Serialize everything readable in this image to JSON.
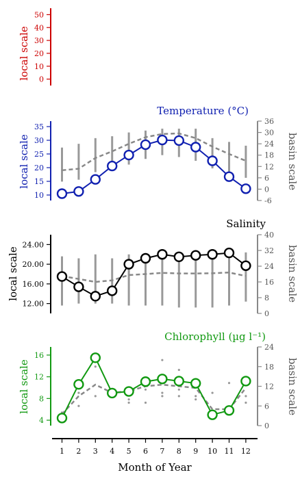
{
  "colors": {
    "top": "#cc0000",
    "temperature": "#1020b0",
    "salinity": "#000000",
    "chlorophyll": "#119911",
    "basin": "#888888"
  },
  "xaxis": {
    "label": "Month of Year",
    "ticks": [
      "1",
      "2",
      "3",
      "4",
      "5",
      "6",
      "7",
      "8",
      "9",
      "10",
      "11",
      "12"
    ]
  },
  "chart_data": [
    {
      "type": "line",
      "title": "",
      "ylabel": "local scale",
      "ylim": [
        -5,
        55
      ],
      "yticks": [
        "0",
        "10",
        "20",
        "30",
        "40",
        "50"
      ],
      "series": []
    },
    {
      "type": "line",
      "title": "Temperature (°C)",
      "ylabel": "local scale",
      "y2label": "basin scale",
      "ylim": [
        8,
        37
      ],
      "yticks": [
        "10",
        "15",
        "20",
        "25",
        "30",
        "35"
      ],
      "y2lim": [
        -6,
        36
      ],
      "y2ticks": [
        "-6",
        "0",
        "6",
        "12",
        "18",
        "24",
        "30",
        "36"
      ],
      "x": [
        1,
        2,
        3,
        4,
        5,
        6,
        7,
        8,
        9,
        10,
        11,
        12
      ],
      "local": [
        10.5,
        11.3,
        15.7,
        20.6,
        24.6,
        28.4,
        30.1,
        29.9,
        27.5,
        22.5,
        16.7,
        12.3
      ],
      "basin_mean": [
        10,
        10.8,
        16.5,
        20,
        24,
        27.5,
        29.2,
        29.5,
        27,
        22.5,
        18.6,
        15
      ],
      "basin_range": [
        [
          4,
          22
        ],
        [
          5,
          24
        ],
        [
          9,
          27
        ],
        [
          12,
          28
        ],
        [
          13,
          30
        ],
        [
          16,
          31
        ],
        [
          18,
          32
        ],
        [
          17,
          32
        ],
        [
          15,
          32
        ],
        [
          11,
          27
        ],
        [
          8,
          25
        ],
        [
          6,
          23
        ]
      ]
    },
    {
      "type": "line",
      "title": "Salinity",
      "ylabel": "local scale",
      "y2label": "basin scale",
      "ylim": [
        10,
        26
      ],
      "yticks": [
        "12.00",
        "16.00",
        "20.00",
        "24.00"
      ],
      "y2lim": [
        0,
        40
      ],
      "y2ticks": [
        "0",
        "8",
        "16",
        "24",
        "32",
        "40"
      ],
      "x": [
        1,
        2,
        3,
        4,
        5,
        6,
        7,
        8,
        9,
        10,
        11,
        12
      ],
      "local": [
        17.5,
        15.4,
        13.5,
        14.6,
        20,
        21.2,
        22,
        21.5,
        21.8,
        22,
        22.3,
        19.7
      ],
      "basin_mean": [
        19,
        17.5,
        16,
        16.8,
        19.5,
        20,
        20.6,
        20.3,
        20.3,
        20.4,
        20.8,
        19
      ],
      "basin_range": [
        [
          4,
          29
        ],
        [
          5,
          28
        ],
        [
          5,
          30
        ],
        [
          5,
          28
        ],
        [
          4,
          30
        ],
        [
          4,
          30
        ],
        [
          4,
          31
        ],
        [
          3,
          30
        ],
        [
          3,
          31
        ],
        [
          3,
          31
        ],
        [
          4,
          31
        ],
        [
          6,
          31
        ]
      ]
    },
    {
      "type": "line",
      "title": "Chlorophyll (µg l⁻¹)",
      "ylabel": "local scale",
      "y2label": "basin scale",
      "ylim": [
        3,
        17.5
      ],
      "yticks": [
        "4",
        "8",
        "12",
        "16"
      ],
      "y2lim": [
        0,
        24
      ],
      "y2ticks": [
        "0",
        "6",
        "12",
        "18",
        "24"
      ],
      "x": [
        1,
        2,
        3,
        4,
        5,
        6,
        7,
        8,
        9,
        10,
        11,
        12
      ],
      "local": [
        4.4,
        10.6,
        15.5,
        9,
        9.3,
        11.1,
        11.6,
        11.2,
        10.8,
        5,
        5.8,
        11.2
      ],
      "basin_mean": [
        3.5,
        9,
        12.5,
        10,
        10.5,
        12,
        12.5,
        12,
        11.5,
        5,
        5,
        11.5
      ],
      "basin_points": [
        [
          1,
          4
        ],
        [
          2,
          6
        ],
        [
          2,
          10
        ],
        [
          3,
          9
        ],
        [
          3,
          18
        ],
        [
          4,
          9
        ],
        [
          5,
          7
        ],
        [
          5,
          8
        ],
        [
          6,
          7
        ],
        [
          6,
          11
        ],
        [
          7,
          9
        ],
        [
          7,
          10
        ],
        [
          7,
          20
        ],
        [
          8,
          9
        ],
        [
          8,
          11
        ],
        [
          8,
          17
        ],
        [
          9,
          8
        ],
        [
          9,
          9
        ],
        [
          9,
          14
        ],
        [
          10,
          10
        ],
        [
          11,
          4
        ],
        [
          11,
          5
        ],
        [
          11,
          13
        ],
        [
          12,
          7
        ],
        [
          12,
          9
        ]
      ]
    }
  ]
}
